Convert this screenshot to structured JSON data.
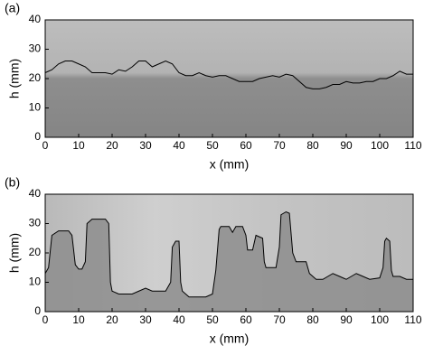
{
  "chart_data": [
    {
      "type": "line",
      "panel_label": "(a)",
      "xlabel": "x (mm)",
      "ylabel": "h (mm)",
      "x": [
        0,
        2,
        4,
        6,
        8,
        10,
        12,
        14,
        16,
        18,
        20,
        22,
        24,
        26,
        28,
        30,
        32,
        34,
        36,
        38,
        40,
        42,
        44,
        46,
        48,
        50,
        52,
        54,
        56,
        58,
        60,
        62,
        64,
        66,
        68,
        70,
        72,
        74,
        76,
        78,
        80,
        82,
        84,
        86,
        88,
        90,
        92,
        94,
        96,
        98,
        100,
        102,
        104,
        106,
        108,
        110
      ],
      "series": [
        {
          "color": "#000000",
          "values": [
            22,
            23,
            25,
            26,
            26,
            25,
            24,
            22,
            22,
            22,
            21.5,
            23,
            22.5,
            24,
            26,
            26,
            24,
            25,
            26,
            25,
            22,
            21,
            21,
            22,
            21,
            20.5,
            21,
            21,
            20,
            19,
            19,
            19,
            20,
            20.5,
            21,
            20.5,
            21.5,
            21,
            19,
            17,
            16.5,
            16.5,
            17,
            18,
            18,
            19,
            18.5,
            18.5,
            19,
            19,
            20,
            20,
            21,
            22.5,
            21.5,
            21.5
          ]
        }
      ],
      "xlim": [
        0,
        110
      ],
      "ylim": [
        0,
        40
      ],
      "xticks": [
        0,
        10,
        20,
        30,
        40,
        50,
        60,
        70,
        80,
        90,
        100,
        110
      ],
      "yticks": [
        0,
        10,
        20,
        30,
        40
      ]
    },
    {
      "type": "line",
      "panel_label": "(b)",
      "xlabel": "x (mm)",
      "ylabel": "h (mm)",
      "x": [
        0,
        1,
        2,
        4,
        7,
        8,
        9,
        10,
        11,
        12,
        12.5,
        14,
        18,
        19,
        19.5,
        20,
        22,
        26,
        28,
        30,
        32,
        36,
        37.5,
        38,
        39,
        40,
        40.5,
        41,
        43,
        48,
        50,
        51,
        52,
        52.5,
        55,
        56,
        57,
        59,
        60,
        60.5,
        62,
        63,
        65,
        65.5,
        66,
        69,
        70,
        70.5,
        72,
        73,
        74,
        75,
        78,
        79,
        81,
        83,
        86,
        88,
        90,
        93,
        95,
        97,
        100,
        101,
        101.5,
        102,
        103,
        103.5,
        104,
        106,
        108,
        110
      ],
      "series": [
        {
          "color": "#000000",
          "values": [
            13,
            15,
            26,
            27.5,
            27.5,
            26,
            16,
            14.5,
            14.5,
            17,
            30,
            31.5,
            31.5,
            30,
            10,
            7,
            6,
            6,
            7,
            8,
            7,
            7,
            10,
            22,
            24,
            24,
            10,
            7,
            5,
            5,
            6,
            14,
            28,
            29,
            29,
            27,
            29,
            29,
            26,
            21,
            21,
            26,
            25,
            17,
            15,
            15,
            22,
            33,
            34,
            33.5,
            20,
            17,
            17,
            13,
            11,
            11,
            13,
            12,
            11,
            13,
            12,
            11,
            11.5,
            15,
            24,
            25,
            24,
            14,
            12,
            12,
            11,
            11
          ]
        }
      ],
      "xlim": [
        0,
        110
      ],
      "ylim": [
        0,
        40
      ],
      "xticks": [
        0,
        10,
        20,
        30,
        40,
        50,
        60,
        70,
        80,
        90,
        100,
        110
      ],
      "yticks": [
        0,
        10,
        20,
        30,
        40
      ]
    }
  ]
}
